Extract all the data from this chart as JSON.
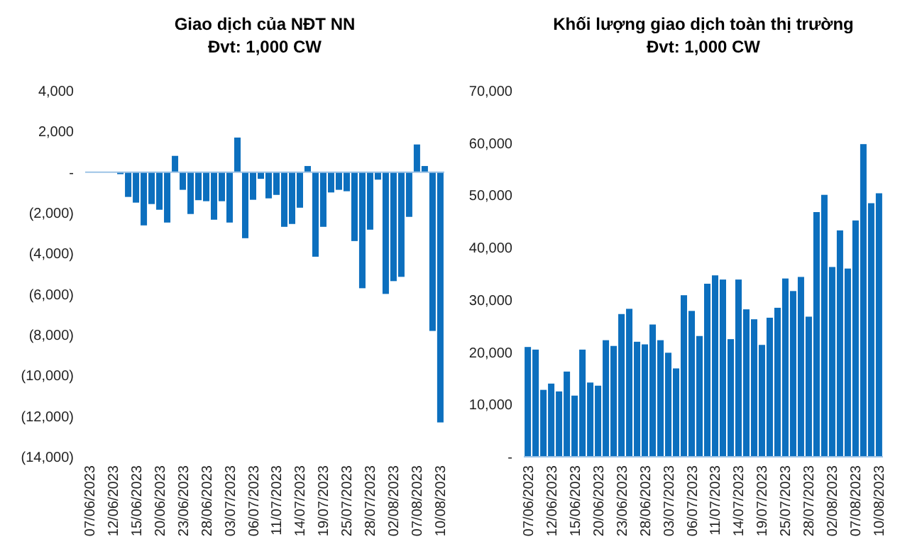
{
  "chart_data": [
    {
      "type": "bar",
      "title": "Giao dịch của NĐT NN",
      "subtitle": "Đvt: 1,000 CW",
      "color": "#0c6fbe",
      "categories": [
        "07/06/2023",
        null,
        null,
        "12/06/2023",
        null,
        null,
        "15/06/2023",
        null,
        null,
        "20/06/2023",
        null,
        null,
        "23/06/2023",
        null,
        null,
        "28/06/2023",
        null,
        null,
        "03/07/2023",
        null,
        null,
        "06/07/2023",
        null,
        null,
        "11/07/2023",
        null,
        null,
        "14/07/2023",
        null,
        null,
        "19/07/2023",
        null,
        null,
        "25/07/2023",
        null,
        null,
        "28/07/2023",
        null,
        null,
        "02/08/2023",
        null,
        null,
        "07/08/2023",
        null,
        null,
        "10/08/2023"
      ],
      "values": [
        0,
        0,
        0,
        0,
        -100,
        -1220,
        -1500,
        -2620,
        -1570,
        -1850,
        -2480,
        800,
        -870,
        -2060,
        -1380,
        -1430,
        -2340,
        -1430,
        -2480,
        1700,
        -3250,
        -1360,
        -330,
        -1290,
        -1120,
        -2690,
        -2550,
        -1750,
        300,
        -4160,
        -2690,
        -1000,
        -870,
        -940,
        -3390,
        -5710,
        -2830,
        -370,
        -5990,
        -5360,
        -5150,
        -2200,
        1360,
        300,
        -7810,
        -12310
      ],
      "ylim": [
        -14000,
        4000
      ],
      "ref_lines": [
        {
          "axis": "y",
          "value": 0,
          "color": "#9dc3e6"
        }
      ],
      "yticks": [
        {
          "value": 4000,
          "label": "4,000"
        },
        {
          "value": 2000,
          "label": "2,000"
        },
        {
          "value": 0,
          "label": "-"
        },
        {
          "value": -2000,
          "label": "(2,000)"
        },
        {
          "value": -4000,
          "label": "(4,000)"
        },
        {
          "value": -6000,
          "label": "(6,000)"
        },
        {
          "value": -8000,
          "label": "(8,000)"
        },
        {
          "value": -10000,
          "label": "(10,000)"
        },
        {
          "value": -12000,
          "label": "(12,000)"
        },
        {
          "value": -14000,
          "label": "(14,000)"
        }
      ]
    },
    {
      "type": "bar",
      "title": "Khối lượng giao dịch toàn thị trường",
      "subtitle": "Đvt: 1,000 CW",
      "color": "#0c6fbe",
      "categories": [
        "07/06/2023",
        null,
        null,
        "12/06/2023",
        null,
        null,
        "15/06/2023",
        null,
        null,
        "20/06/2023",
        null,
        null,
        "23/06/2023",
        null,
        null,
        "28/06/2023",
        null,
        null,
        "03/07/2023",
        null,
        null,
        "06/07/2023",
        null,
        null,
        "11/07/2023",
        null,
        null,
        "14/07/2023",
        null,
        null,
        "19/07/2023",
        null,
        null,
        "25/07/2023",
        null,
        null,
        "28/07/2023",
        null,
        null,
        "02/08/2023",
        null,
        null,
        "07/08/2023",
        null,
        null,
        "10/08/2023"
      ],
      "values": [
        21000,
        20500,
        12800,
        14000,
        12500,
        16300,
        11700,
        20500,
        14200,
        13600,
        22300,
        21200,
        27300,
        28300,
        22000,
        21500,
        25300,
        22300,
        19900,
        16900,
        30900,
        27900,
        23100,
        33100,
        34700,
        33900,
        22500,
        33900,
        28200,
        26300,
        21400,
        26600,
        28500,
        34100,
        31700,
        34400,
        26800,
        46800,
        50100,
        36300,
        43300,
        36000,
        45200,
        59800,
        48500,
        50400
      ],
      "ylim": [
        0,
        70000
      ],
      "yticks": [
        {
          "value": 0,
          "label": "-"
        },
        {
          "value": 10000,
          "label": "10,000"
        },
        {
          "value": 20000,
          "label": "20,000"
        },
        {
          "value": 30000,
          "label": "30,000"
        },
        {
          "value": 40000,
          "label": "40,000"
        },
        {
          "value": 50000,
          "label": "50,000"
        },
        {
          "value": 60000,
          "label": "60,000"
        },
        {
          "value": 70000,
          "label": "70,000"
        }
      ]
    }
  ]
}
